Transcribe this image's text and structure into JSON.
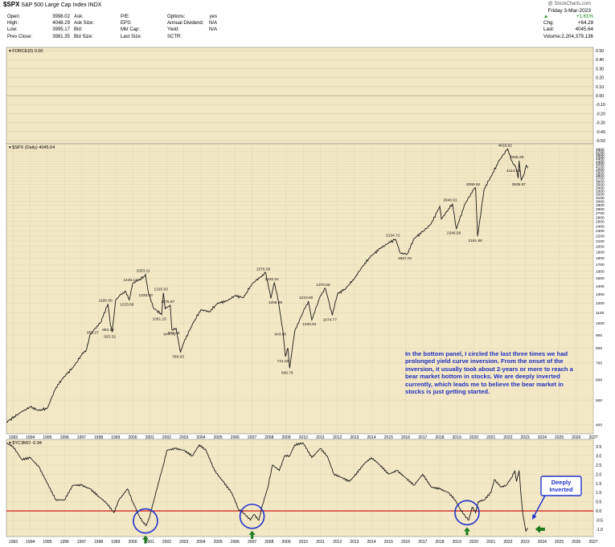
{
  "header": {
    "symbol": "$SPX",
    "name": "S&P 500 Large Cap Index",
    "exchange": "INDX",
    "date": "Friday   3-Mar-2023",
    "watermark": "@ StockCharts.com",
    "col1": [
      [
        "Open:",
        "3998.02"
      ],
      [
        "High:",
        "4048.29"
      ],
      [
        "Low:",
        "3995.17"
      ],
      [
        "Prev Close:",
        "3981.35"
      ]
    ],
    "col2": [
      [
        "Ask:",
        ""
      ],
      [
        "Ask Size:",
        ""
      ],
      [
        "Bid:",
        ""
      ],
      [
        "Bid Size:",
        ""
      ]
    ],
    "col3": [
      [
        "P/E:",
        ""
      ],
      [
        "EPS:",
        ""
      ],
      [
        "Mkt Cap:",
        ""
      ],
      [
        "Last Size:",
        ""
      ]
    ],
    "col4": [
      [
        "Options:",
        "yes"
      ],
      [
        "Annual Dividend:",
        "N/A"
      ],
      [
        "Yield:",
        "N/A"
      ],
      [
        "SCTR:",
        ""
      ]
    ],
    "change_pct": "+1.61%",
    "right": [
      [
        "Chg:",
        "+64.29"
      ],
      [
        "Last:",
        "4045.64"
      ],
      [
        "Volume:",
        "2,204,379,136"
      ]
    ]
  },
  "panels": {
    "force_label": "FORCE(0) 0.00",
    "spx_label": "$SPX (Daily) 4045.64",
    "eyc_label": "$YC3MO -0.94",
    "deeply_inverted": "Deeply\nInverted"
  },
  "colors": {
    "plot_bg": "#f3e8c6",
    "price": "#1a1a1a",
    "zero_line": "#cc0000",
    "annot_blue": "#2233cc",
    "arrow_green": "#1d7a1d"
  },
  "note": "In the bottom panel, I circled the last three times we had prolonged yield curve inversion. From the onset of the inversion, it usually took about 2-years or more to reach a bear market bottom in stocks. We are deeply inverted currently, which leads me to believe the bear market in stocks is just getting started.",
  "chart_data": [
    {
      "type": "line",
      "title": "FORCE(0) 0.00",
      "ylim": [
        -0.5,
        0.5
      ],
      "y_ticks": [
        "0.50",
        "0.40",
        "0.30",
        "0.20",
        "0.10",
        "0.00",
        "-0.10",
        "-0.20",
        "-0.30",
        "-0.40",
        "-0.50"
      ],
      "series": []
    },
    {
      "type": "line",
      "title": "$SPX (Daily) 4045.64",
      "scale": "log",
      "xlim": [
        1992.6,
        2027.0
      ],
      "ylim": [
        380,
        4900
      ],
      "x_ticks": [
        "1993",
        "1994",
        "1995",
        "1996",
        "1997",
        "1998",
        "1999",
        "2000",
        "2001",
        "2002",
        "2003",
        "2004",
        "2005",
        "2006",
        "2007",
        "2008",
        "2009",
        "2010",
        "2011",
        "2012",
        "2013",
        "2014",
        "2015",
        "2016",
        "2017",
        "2018",
        "2019",
        "2020",
        "2021",
        "2022",
        "2023",
        "2024",
        "2025",
        "2026",
        "2027"
      ],
      "y_ticks": [
        "4800",
        "4700",
        "4600",
        "4500",
        "4400",
        "4300",
        "4200",
        "4100",
        "4000",
        "3900",
        "3800",
        "3700",
        "3600",
        "3500",
        "3400",
        "3300",
        "3200",
        "3100",
        "3000",
        "2900",
        "2800",
        "2700",
        "2600",
        "2500",
        "2400",
        "2300",
        "2200",
        "2100",
        "2000",
        "1900",
        "1800",
        "1700",
        "1600",
        "1500",
        "1400",
        "1300",
        "1200",
        "1100",
        "1000",
        "900",
        "800",
        "700",
        "600",
        "500",
        "400"
      ],
      "points": [
        [
          1992.6,
          410
        ],
        [
          1993.5,
          450
        ],
        [
          1994.0,
          470
        ],
        [
          1994.5,
          455
        ],
        [
          1995.0,
          465
        ],
        [
          1995.5,
          560
        ],
        [
          1996.0,
          620
        ],
        [
          1996.5,
          670
        ],
        [
          1997.0,
          750
        ],
        [
          1997.3,
          790
        ],
        [
          1997.5,
          900
        ],
        [
          1997.8,
          955.27
        ],
        [
          1998.1,
          1000
        ],
        [
          1998.55,
          1190
        ],
        [
          1998.7,
          983.12
        ],
        [
          1998.8,
          923.32
        ],
        [
          1999.0,
          1230
        ],
        [
          1999.3,
          1300
        ],
        [
          1999.6,
          1330
        ],
        [
          1999.8,
          1233.66
        ],
        [
          2000.0,
          1429.14
        ],
        [
          2000.25,
          1460
        ],
        [
          2000.7,
          1527
        ],
        [
          2000.75,
          1553.11
        ],
        [
          2000.9,
          1339.4
        ],
        [
          2001.2,
          1150.5
        ],
        [
          2001.7,
          1081.15
        ],
        [
          2001.8,
          1315.93
        ],
        [
          2001.9,
          1140
        ],
        [
          2002.2,
          1176.97
        ],
        [
          2002.3,
          944.75
        ],
        [
          2002.55,
          954.28
        ],
        [
          2002.8,
          768.63
        ],
        [
          2003.0,
          840
        ],
        [
          2003.5,
          990
        ],
        [
          2004.0,
          1130
        ],
        [
          2004.5,
          1110
        ],
        [
          2005.0,
          1200
        ],
        [
          2005.5,
          1220
        ],
        [
          2006.0,
          1280
        ],
        [
          2006.5,
          1260
        ],
        [
          2007.0,
          1430
        ],
        [
          2007.5,
          1520
        ],
        [
          2007.8,
          1576.09
        ],
        [
          2008.1,
          1250
        ],
        [
          2008.3,
          1440.24
        ],
        [
          2008.5,
          1256.98
        ],
        [
          2008.8,
          943.85
        ],
        [
          2008.95,
          741.02
        ],
        [
          2009.1,
          800
        ],
        [
          2009.2,
          666.79
        ],
        [
          2009.5,
          930
        ],
        [
          2010.0,
          1110
        ],
        [
          2010.3,
          1219.8
        ],
        [
          2010.5,
          1030.91
        ],
        [
          2011.0,
          1280
        ],
        [
          2011.3,
          1370.58
        ],
        [
          2011.7,
          1074.77
        ],
        [
          2012.0,
          1300
        ],
        [
          2012.5,
          1370
        ],
        [
          2013.0,
          1500
        ],
        [
          2013.5,
          1680
        ],
        [
          2014.0,
          1840
        ],
        [
          2014.5,
          1960
        ],
        [
          2015.0,
          2060
        ],
        [
          2015.4,
          2134.72
        ],
        [
          2015.7,
          1880
        ],
        [
          2016.1,
          1867.01
        ],
        [
          2016.5,
          2150
        ],
        [
          2017.0,
          2280
        ],
        [
          2017.5,
          2450
        ],
        [
          2018.0,
          2870
        ],
        [
          2018.1,
          2560
        ],
        [
          2018.75,
          2940.91
        ],
        [
          2018.97,
          2346.58
        ],
        [
          2019.5,
          2950
        ],
        [
          2020.0,
          3350
        ],
        [
          2020.1,
          3390.52
        ],
        [
          2020.22,
          2191.86
        ],
        [
          2020.6,
          3350
        ],
        [
          2021.0,
          3750
        ],
        [
          2021.5,
          4350
        ],
        [
          2021.97,
          4818.62
        ],
        [
          2022.3,
          4200
        ],
        [
          2022.45,
          4114.65
        ],
        [
          2022.6,
          3700
        ],
        [
          2022.65,
          4325.28
        ],
        [
          2022.78,
          3636.87
        ],
        [
          2022.95,
          3850
        ],
        [
          2023.07,
          4150
        ],
        [
          2023.17,
          4045.64
        ]
      ],
      "data_labels": [
        [
          "1553.11",
          2000.75,
          1553.11
        ],
        [
          "1429.14",
          2000.0,
          1429.14
        ],
        [
          "1339.40",
          2000.9,
          1339.4
        ],
        [
          "1315.93",
          2001.8,
          1315.93
        ],
        [
          "1233.66",
          1999.8,
          1233.66
        ],
        [
          "1190.58",
          1998.55,
          1190.58
        ],
        [
          "1176.97",
          2002.2,
          1176.97
        ],
        [
          "1081.15",
          2001.7,
          1081.15
        ],
        [
          "983.12",
          1998.7,
          983.12
        ],
        [
          "955.27",
          1997.8,
          955.27
        ],
        [
          "954.28",
          2002.55,
          954.28
        ],
        [
          "944.75",
          2002.3,
          944.75
        ],
        [
          "923.32",
          1998.8,
          923.32
        ],
        [
          "768.63",
          2002.8,
          768.63
        ],
        [
          "1576.09",
          2007.8,
          1576.09
        ],
        [
          "1440.24",
          2008.3,
          1440.24
        ],
        [
          "1256.98",
          2008.5,
          1256.98
        ],
        [
          "943.85",
          2008.8,
          943.85
        ],
        [
          "741.02",
          2008.95,
          741.02
        ],
        [
          "666.79",
          2009.2,
          666.79
        ],
        [
          "1219.80",
          2010.3,
          1219.8
        ],
        [
          "1030.91",
          2010.5,
          1030.91
        ],
        [
          "1370.58",
          2011.3,
          1370.58
        ],
        [
          "1074.77",
          2011.7,
          1074.77
        ],
        [
          "2134.72",
          2015.4,
          2134.72
        ],
        [
          "1867.01",
          2016.1,
          1867.01
        ],
        [
          "2940.91",
          2018.75,
          2940.91
        ],
        [
          "2346.58",
          2018.97,
          2346.58
        ],
        [
          "3390.52",
          2020.1,
          3390.52
        ],
        [
          "2191.86",
          2020.22,
          2191.86
        ],
        [
          "4818.62",
          2021.97,
          4818.62
        ],
        [
          "4325.28",
          2022.65,
          4325.28
        ],
        [
          "4114.65",
          2022.45,
          4114.65
        ],
        [
          "3636.87",
          2022.78,
          3636.87
        ]
      ]
    },
    {
      "type": "line",
      "title": "$YC3MO -0.94",
      "xlim": [
        1992.6,
        2027.0
      ],
      "ylim": [
        -1.4,
        3.9
      ],
      "x_ticks": [
        "1993",
        "1994",
        "1995",
        "1996",
        "1997",
        "1998",
        "1999",
        "2000",
        "2001",
        "2002",
        "2003",
        "2004",
        "2005",
        "2006",
        "2007",
        "2008",
        "2009",
        "2010",
        "2011",
        "2012",
        "2013",
        "2014",
        "2015",
        "2016",
        "2017",
        "2018",
        "2019",
        "2020",
        "2021",
        "2022",
        "2023",
        "2024",
        "2025",
        "2026",
        "2027"
      ],
      "y_ticks": [
        "3.5",
        "3.0",
        "2.5",
        "2.0",
        "1.5",
        "1.0",
        "0.5",
        "0.0",
        "-0.5",
        "-1.0"
      ],
      "points": [
        [
          1992.6,
          3.7
        ],
        [
          1993.0,
          3.5
        ],
        [
          1993.5,
          2.8
        ],
        [
          1994.0,
          2.9
        ],
        [
          1994.5,
          2.4
        ],
        [
          1995.0,
          1.5
        ],
        [
          1995.5,
          0.6
        ],
        [
          1996.0,
          0.6
        ],
        [
          1996.5,
          1.4
        ],
        [
          1997.0,
          1.4
        ],
        [
          1997.5,
          1.2
        ],
        [
          1998.0,
          0.8
        ],
        [
          1998.5,
          0.4
        ],
        [
          1998.9,
          -0.1
        ],
        [
          1999.2,
          0.6
        ],
        [
          1999.7,
          1.2
        ],
        [
          2000.0,
          0.5
        ],
        [
          2000.4,
          -0.3
        ],
        [
          2000.6,
          -0.6
        ],
        [
          2000.8,
          -0.8
        ],
        [
          2001.0,
          -0.3
        ],
        [
          2001.2,
          0.4
        ],
        [
          2001.5,
          1.5
        ],
        [
          2001.8,
          2.5
        ],
        [
          2002.0,
          3.3
        ],
        [
          2002.5,
          3.4
        ],
        [
          2003.0,
          3.3
        ],
        [
          2003.5,
          3.0
        ],
        [
          2003.9,
          3.6
        ],
        [
          2004.3,
          3.3
        ],
        [
          2004.8,
          2.2
        ],
        [
          2005.3,
          1.6
        ],
        [
          2005.8,
          1.0
        ],
        [
          2006.2,
          0.1
        ],
        [
          2006.6,
          -0.2
        ],
        [
          2006.9,
          -0.5
        ],
        [
          2007.1,
          -0.2
        ],
        [
          2007.4,
          -0.5
        ],
        [
          2007.6,
          0.3
        ],
        [
          2007.9,
          1.2
        ],
        [
          2008.2,
          2.5
        ],
        [
          2008.6,
          2.2
        ],
        [
          2008.9,
          3.0
        ],
        [
          2009.2,
          3.0
        ],
        [
          2009.5,
          3.6
        ],
        [
          2010.0,
          3.7
        ],
        [
          2010.5,
          2.9
        ],
        [
          2011.0,
          3.4
        ],
        [
          2011.4,
          3.0
        ],
        [
          2011.8,
          2.0
        ],
        [
          2012.3,
          1.8
        ],
        [
          2012.7,
          1.6
        ],
        [
          2013.0,
          1.9
        ],
        [
          2013.6,
          2.6
        ],
        [
          2014.0,
          2.9
        ],
        [
          2014.5,
          2.5
        ],
        [
          2015.0,
          2.0
        ],
        [
          2015.5,
          2.2
        ],
        [
          2016.0,
          1.8
        ],
        [
          2016.5,
          1.4
        ],
        [
          2017.0,
          2.0
        ],
        [
          2017.5,
          1.3
        ],
        [
          2018.0,
          1.2
        ],
        [
          2018.5,
          1.0
        ],
        [
          2018.9,
          0.6
        ],
        [
          2019.2,
          0.1
        ],
        [
          2019.5,
          -0.3
        ],
        [
          2019.7,
          -0.5
        ],
        [
          2019.9,
          0.2
        ],
        [
          2020.1,
          -0.1
        ],
        [
          2020.25,
          0.5
        ],
        [
          2020.6,
          0.6
        ],
        [
          2021.0,
          1.0
        ],
        [
          2021.2,
          1.7
        ],
        [
          2021.6,
          1.3
        ],
        [
          2021.9,
          1.4
        ],
        [
          2022.2,
          1.8
        ],
        [
          2022.4,
          2.2
        ],
        [
          2022.5,
          1.6
        ],
        [
          2022.65,
          2.2
        ],
        [
          2022.75,
          1.0
        ],
        [
          2022.85,
          0.0
        ],
        [
          2022.95,
          -0.6
        ],
        [
          2023.05,
          -1.1
        ],
        [
          2023.17,
          -0.94
        ]
      ]
    }
  ]
}
